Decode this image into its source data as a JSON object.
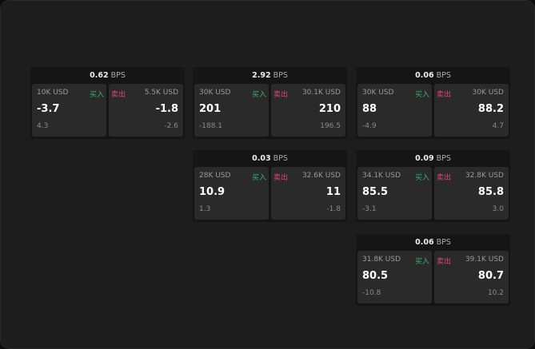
{
  "labels": {
    "unit": "BPS",
    "buy": "买入",
    "sell": "卖出"
  },
  "colors": {
    "buy": "#34b36a",
    "sell": "#e0457b",
    "background": "#1d1d1d"
  },
  "cards": [
    {
      "spread": "0.62",
      "buy": {
        "amount": "10K USD",
        "price": "-3.7",
        "change": "4.3"
      },
      "sell": {
        "amount": "5.5K USD",
        "price": "-1.8",
        "change": "-2.6"
      }
    },
    {
      "spread": "2.92",
      "buy": {
        "amount": "30K USD",
        "price": "201",
        "change": "-188.1"
      },
      "sell": {
        "amount": "30.1K USD",
        "price": "210",
        "change": "196.5"
      }
    },
    {
      "spread": "0.06",
      "buy": {
        "amount": "30K USD",
        "price": "88",
        "change": "-4.9"
      },
      "sell": {
        "amount": "30K USD",
        "price": "88.2",
        "change": "4.7"
      }
    },
    {
      "spread": "0.03",
      "buy": {
        "amount": "28K USD",
        "price": "10.9",
        "change": "1.3"
      },
      "sell": {
        "amount": "32.6K USD",
        "price": "11",
        "change": "-1.8"
      }
    },
    {
      "spread": "0.09",
      "buy": {
        "amount": "34.1K USD",
        "price": "85.5",
        "change": "-3.1"
      },
      "sell": {
        "amount": "32.8K USD",
        "price": "85.8",
        "change": "3.0"
      }
    },
    {
      "spread": "0.06",
      "buy": {
        "amount": "31.8K USD",
        "price": "80.5",
        "change": "-10.8"
      },
      "sell": {
        "amount": "39.1K USD",
        "price": "80.7",
        "change": "10.2"
      }
    }
  ]
}
